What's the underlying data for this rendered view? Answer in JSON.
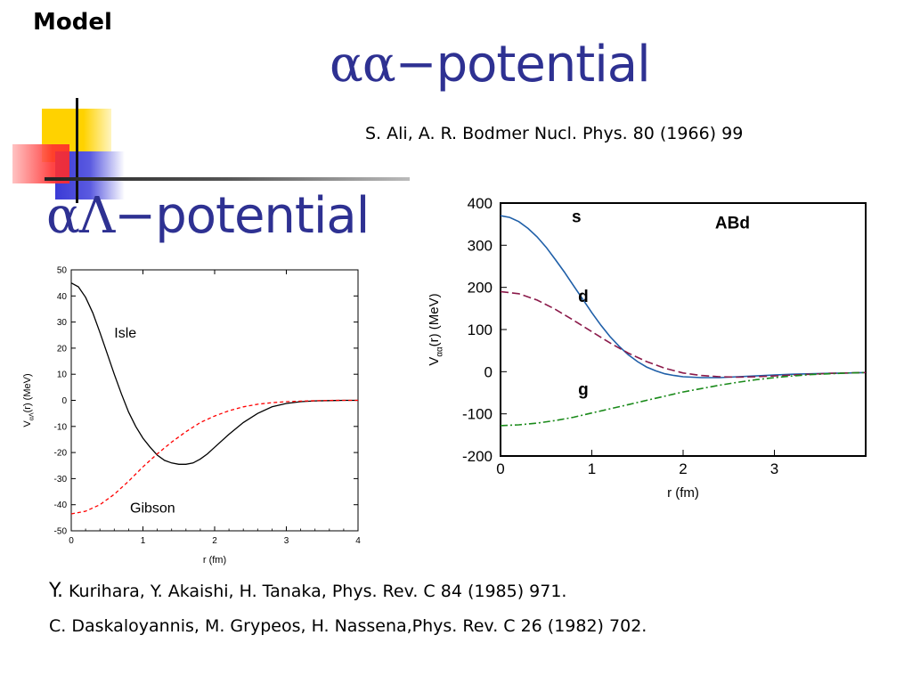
{
  "header": {
    "section_label": "Model",
    "title_aa": {
      "greek": "αα",
      "dash": "−",
      "word": "potential"
    },
    "title_al": {
      "greek": "αΛ",
      "dash": "−",
      "word": "potential"
    }
  },
  "references": {
    "ali": "S. Ali, A. R. Bodmer Nucl. Phys. 80 (1966) 99",
    "kurihara_initial": "Y.",
    "kurihara_rest": " Kurihara, Y. Akaishi, H. Tanaka, Phys. Rev. C 84 (1985) 971.",
    "daskaloyannis": "C. Daskaloyannis, M. Grypeos, H. Nassena,Phys. Rev. C 26 (1982) 702."
  },
  "colors": {
    "title_blue": "#2e3192",
    "deco_yellow": "#ffd200",
    "deco_blue": "#3b3bd6",
    "deco_red": "#ff2a2a",
    "isle_line": "#000000",
    "gibson_line": "#ff0000",
    "s_line": "#1f5fa8",
    "d_line": "#8b1a4a",
    "g_line": "#1a8a1a"
  },
  "chart_data": [
    {
      "type": "line",
      "title": "",
      "xlabel": "r  (fm)",
      "ylabel": "V_αΛ(r) (MeV)",
      "ylabel_main": "V",
      "ylabel_sub": "αΛ",
      "ylabel_tail": "(r) (MeV)",
      "xlim": [
        0,
        4
      ],
      "ylim": [
        -50,
        50
      ],
      "xticks": [
        0,
        1,
        2,
        3,
        4
      ],
      "yticks": [
        50,
        40,
        30,
        20,
        10,
        0,
        -10,
        -20,
        -30,
        -40,
        -50
      ],
      "grid": false,
      "series": [
        {
          "name": "Isle",
          "style": "solid",
          "x": [
            0,
            0.1,
            0.2,
            0.3,
            0.4,
            0.5,
            0.6,
            0.7,
            0.8,
            0.9,
            1.0,
            1.1,
            1.2,
            1.3,
            1.4,
            1.5,
            1.6,
            1.7,
            1.8,
            1.9,
            2.0,
            2.2,
            2.4,
            2.6,
            2.8,
            3.0,
            3.2,
            3.4,
            3.6,
            3.8,
            4.0
          ],
          "y": [
            45,
            43.5,
            39.5,
            33.5,
            26,
            18,
            10,
            2.5,
            -4.5,
            -10,
            -14.5,
            -18,
            -21,
            -23,
            -24,
            -24.5,
            -24.5,
            -24,
            -22.5,
            -20.5,
            -18,
            -13,
            -8.5,
            -5,
            -2.5,
            -1.2,
            -0.5,
            -0.2,
            -0.1,
            0,
            0
          ]
        },
        {
          "name": "Gibson",
          "style": "dashed",
          "x": [
            0,
            0.2,
            0.4,
            0.6,
            0.8,
            1.0,
            1.2,
            1.4,
            1.6,
            1.8,
            2.0,
            2.2,
            2.4,
            2.6,
            2.8,
            3.0,
            3.2,
            3.4,
            3.6,
            3.8,
            4.0
          ],
          "y": [
            -43.5,
            -42.5,
            -40,
            -36,
            -31,
            -25.5,
            -20.5,
            -16,
            -12,
            -8.5,
            -6,
            -4,
            -2.5,
            -1.5,
            -0.9,
            -0.5,
            -0.3,
            -0.15,
            -0.05,
            0,
            0
          ]
        }
      ],
      "labels": [
        {
          "text": "Isle",
          "x": 0.6,
          "y": 24
        },
        {
          "text": "Gibson",
          "x": 0.82,
          "y": -43
        }
      ]
    },
    {
      "type": "line",
      "title": "",
      "xlabel": "r  (fm)",
      "ylabel": "V_αα(r) (MeV)",
      "ylabel_main": "V",
      "ylabel_sub": "αα",
      "ylabel_tail": "(r) (MeV)",
      "xlim": [
        0,
        4
      ],
      "ylim": [
        -200,
        400
      ],
      "xticks": [
        0,
        1,
        2,
        3
      ],
      "yticks": [
        400,
        300,
        200,
        100,
        0,
        -100,
        -200
      ],
      "grid": false,
      "annotation": "ABd",
      "series": [
        {
          "name": "s",
          "style": "solid",
          "x": [
            0,
            0.1,
            0.2,
            0.3,
            0.4,
            0.5,
            0.6,
            0.7,
            0.8,
            0.9,
            1.0,
            1.1,
            1.2,
            1.3,
            1.4,
            1.5,
            1.6,
            1.7,
            1.8,
            1.9,
            2.0,
            2.2,
            2.4,
            2.6,
            2.8,
            3.0,
            3.2,
            3.4,
            3.6,
            3.8,
            4.0
          ],
          "y": [
            370,
            366,
            356,
            340,
            320,
            295,
            266,
            236,
            204,
            172,
            140,
            110,
            83,
            60,
            40,
            24,
            11,
            2,
            -5,
            -9,
            -12,
            -14,
            -14,
            -12,
            -10,
            -8,
            -6,
            -5,
            -4,
            -3,
            -2
          ]
        },
        {
          "name": "d",
          "style": "dashed",
          "x": [
            0,
            0.2,
            0.4,
            0.6,
            0.8,
            1.0,
            1.2,
            1.4,
            1.6,
            1.8,
            2.0,
            2.2,
            2.4,
            2.6,
            2.8,
            3.0,
            3.2,
            3.4,
            3.6,
            3.8,
            4.0
          ],
          "y": [
            190,
            185,
            170,
            148,
            122,
            95,
            68,
            44,
            24,
            8,
            -3,
            -9,
            -12,
            -13,
            -12,
            -10,
            -8,
            -6,
            -4,
            -3,
            -2
          ]
        },
        {
          "name": "g",
          "style": "dashdot",
          "x": [
            0,
            0.2,
            0.4,
            0.6,
            0.8,
            1.0,
            1.2,
            1.4,
            1.6,
            1.8,
            2.0,
            2.2,
            2.4,
            2.6,
            2.8,
            3.0,
            3.2,
            3.4,
            3.6,
            3.8,
            4.0
          ],
          "y": [
            -128,
            -126,
            -122,
            -116,
            -108,
            -98,
            -88,
            -78,
            -68,
            -58,
            -48,
            -40,
            -32,
            -25,
            -19,
            -14,
            -10,
            -7,
            -5,
            -3,
            -2
          ]
        }
      ],
      "labels": [
        {
          "text": "s",
          "x": 0.78,
          "y": 355
        },
        {
          "text": "d",
          "x": 0.85,
          "y": 165
        },
        {
          "text": "g",
          "x": 0.85,
          "y": -55
        }
      ]
    }
  ]
}
